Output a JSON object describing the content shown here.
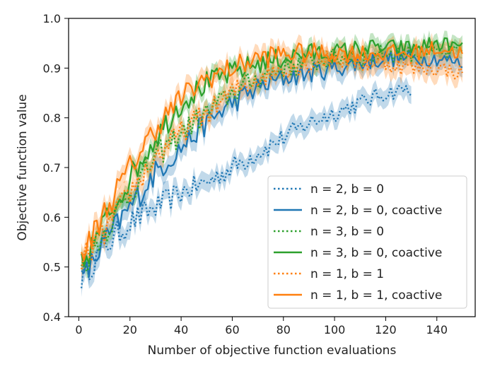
{
  "chart_data": {
    "type": "line",
    "title": "",
    "xlabel": "Number of objective function evaluations",
    "ylabel": "Objective function value",
    "xlim": [
      -4,
      155
    ],
    "ylim": [
      0.4,
      1.0
    ],
    "xticks": [
      0,
      20,
      40,
      60,
      80,
      100,
      120,
      140
    ],
    "yticks": [
      0.4,
      0.5,
      0.6,
      0.7,
      0.8,
      0.9,
      1.0
    ],
    "grid": false,
    "legend_position": "lower-right",
    "band_note": "shaded band around each line",
    "series": [
      {
        "name": "n = 2, b = 0",
        "style": "dotted",
        "color": "#1f77b4",
        "x": [
          1,
          10,
          20,
          30,
          40,
          50,
          60,
          70,
          80,
          90,
          100,
          110,
          120,
          130
        ],
        "values": [
          0.48,
          0.54,
          0.59,
          0.62,
          0.65,
          0.67,
          0.7,
          0.73,
          0.76,
          0.79,
          0.81,
          0.83,
          0.85,
          0.86
        ],
        "band": 0.018
      },
      {
        "name": "n = 2, b = 0, coactive",
        "style": "solid",
        "color": "#1f77b4",
        "x": [
          1,
          10,
          20,
          30,
          40,
          50,
          60,
          70,
          80,
          90,
          100,
          110,
          120,
          130,
          140,
          150
        ],
        "values": [
          0.47,
          0.55,
          0.62,
          0.69,
          0.74,
          0.79,
          0.83,
          0.86,
          0.88,
          0.89,
          0.9,
          0.91,
          0.92,
          0.92,
          0.92,
          0.91
        ],
        "band": 0.02
      },
      {
        "name": "n = 3, b = 0",
        "style": "dotted",
        "color": "#2ca02c",
        "x": [
          1,
          10,
          20,
          30,
          40,
          50,
          60,
          70,
          80,
          90,
          100,
          110,
          120,
          130,
          140,
          150
        ],
        "values": [
          0.5,
          0.57,
          0.65,
          0.72,
          0.77,
          0.81,
          0.85,
          0.88,
          0.9,
          0.91,
          0.92,
          0.92,
          0.93,
          0.93,
          0.93,
          0.93
        ],
        "band": 0.015
      },
      {
        "name": "n = 3, b = 0, coactive",
        "style": "solid",
        "color": "#2ca02c",
        "x": [
          1,
          10,
          20,
          30,
          40,
          50,
          60,
          70,
          80,
          90,
          100,
          110,
          120,
          130,
          140,
          150
        ],
        "values": [
          0.5,
          0.59,
          0.68,
          0.76,
          0.83,
          0.87,
          0.89,
          0.91,
          0.92,
          0.93,
          0.93,
          0.94,
          0.94,
          0.94,
          0.95,
          0.94
        ],
        "band": 0.015
      },
      {
        "name": "n = 1, b = 1",
        "style": "dotted",
        "color": "#ff7f0e",
        "x": [
          1,
          10,
          20,
          30,
          40,
          50,
          60,
          70,
          80,
          90,
          100,
          110,
          120,
          130,
          140,
          150
        ],
        "values": [
          0.51,
          0.57,
          0.65,
          0.72,
          0.77,
          0.81,
          0.85,
          0.88,
          0.9,
          0.91,
          0.92,
          0.91,
          0.91,
          0.9,
          0.9,
          0.89
        ],
        "band": 0.02
      },
      {
        "name": "n = 1, b = 1, coactive",
        "style": "solid",
        "color": "#ff7f0e",
        "x": [
          1,
          10,
          20,
          30,
          40,
          50,
          60,
          70,
          80,
          90,
          100,
          110,
          120,
          130,
          140,
          150
        ],
        "values": [
          0.52,
          0.61,
          0.7,
          0.78,
          0.84,
          0.88,
          0.9,
          0.92,
          0.93,
          0.93,
          0.93,
          0.93,
          0.93,
          0.93,
          0.94,
          0.93
        ],
        "band": 0.018
      }
    ]
  }
}
